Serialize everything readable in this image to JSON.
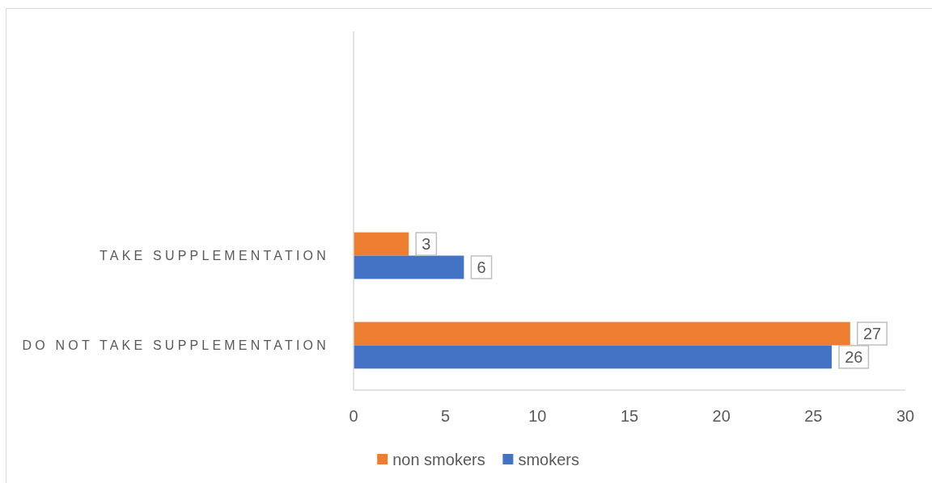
{
  "chart_data": {
    "type": "bar",
    "orientation": "horizontal",
    "categories": [
      null,
      null,
      "TAKE SUPPLEMENTATION",
      "DO NOT TAKE SUPPLEMENTATION"
    ],
    "series": [
      {
        "name": "non smokers",
        "color": "#ed7d31",
        "values": [
          null,
          null,
          3,
          27
        ]
      },
      {
        "name": "smokers",
        "color": "#4472c4",
        "values": [
          null,
          null,
          6,
          26
        ]
      }
    ],
    "xlim": [
      0,
      30
    ],
    "xticks": [
      0,
      5,
      10,
      15,
      20,
      25,
      30
    ],
    "grid": false,
    "legend": "bottom",
    "data_labels": true
  }
}
